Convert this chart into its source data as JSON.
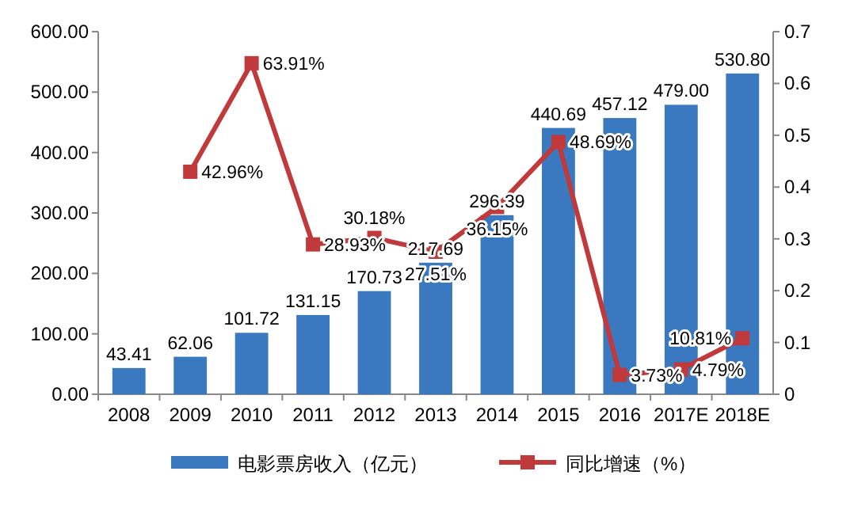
{
  "chart_data": {
    "type": "bar",
    "categories": [
      "2008",
      "2009",
      "2010",
      "2011",
      "2012",
      "2013",
      "2014",
      "2015",
      "2016",
      "2017E",
      "2018E"
    ],
    "ylim": [
      0,
      600
    ],
    "yticks": [
      {
        "value": 0,
        "label": "0.00"
      },
      {
        "value": 100,
        "label": "100.00"
      },
      {
        "value": 200,
        "label": "200.00"
      },
      {
        "value": 300,
        "label": "300.00"
      },
      {
        "value": 400,
        "label": "400.00"
      },
      {
        "value": 500,
        "label": "500.00"
      },
      {
        "value": 600,
        "label": "600.00"
      }
    ],
    "y2lim": [
      0,
      0.7
    ],
    "y2ticks": [
      0,
      0.1,
      0.2,
      0.3,
      0.4,
      0.5,
      0.6,
      0.7
    ],
    "legend": "bottom",
    "grid": false,
    "marker": "square",
    "series": [
      {
        "name": "电影票房收入（亿元）",
        "color": "#3a78c0",
        "values": [
          43.41,
          62.06,
          101.72,
          131.15,
          170.73,
          217.69,
          296.39,
          440.69,
          457.12,
          479.0,
          530.8
        ],
        "value_labels": [
          "43.41",
          "62.06",
          "101.72",
          "131.15",
          "170.73",
          "217.69",
          "296.39",
          "440.69",
          "457.12",
          "479.00",
          "530.80"
        ]
      },
      {
        "name": "同比增速（%）",
        "type": "line",
        "axis": "y2",
        "color": "#c0393b",
        "values": [
          null,
          0.4296,
          0.6391,
          0.2893,
          0.3018,
          0.2751,
          0.3615,
          0.4869,
          0.0373,
          0.0479,
          0.1081
        ],
        "value_labels": [
          null,
          "42.96%",
          "63.91%",
          "28.93%",
          "30.18%",
          "27.51%",
          "36.15%",
          "48.69%",
          "3.73%",
          "4.79%",
          "10.81%"
        ]
      }
    ]
  }
}
